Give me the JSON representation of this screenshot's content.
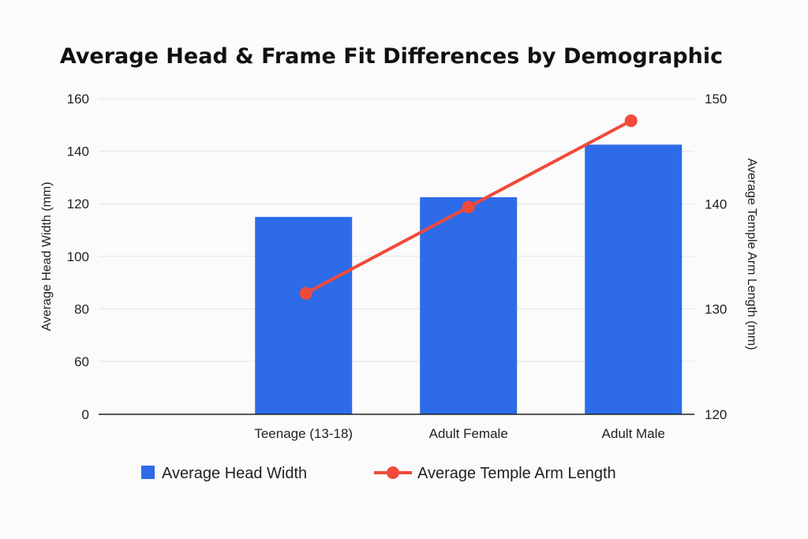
{
  "chart_data": {
    "type": "bar",
    "title": "Average Head & Frame Fit Differences by Demographic",
    "categories": [
      "Teenage (13-18)",
      "Adult Female",
      "Adult Male"
    ],
    "series": [
      {
        "name": "Average Head Width",
        "type": "bar",
        "axis": "left",
        "color": "#2d6be8",
        "values": [
          115,
          122.5,
          142.5
        ]
      },
      {
        "name": "Average Temple Arm Length",
        "type": "line",
        "axis": "right",
        "color": "#f04a3a",
        "values": [
          131.5,
          139.7,
          147.9
        ]
      }
    ],
    "y_left": {
      "label": "Average Head Width (mm)",
      "ticks": [
        0,
        60,
        80,
        100,
        120,
        140,
        160
      ],
      "range": [
        0,
        160
      ],
      "broken_axis": true
    },
    "y_right": {
      "label": "Average Temple Arm Length (mm)",
      "ticks": [
        120,
        130,
        140,
        150
      ],
      "range": [
        120,
        150
      ]
    },
    "grid": true,
    "legend_position": "bottom"
  }
}
